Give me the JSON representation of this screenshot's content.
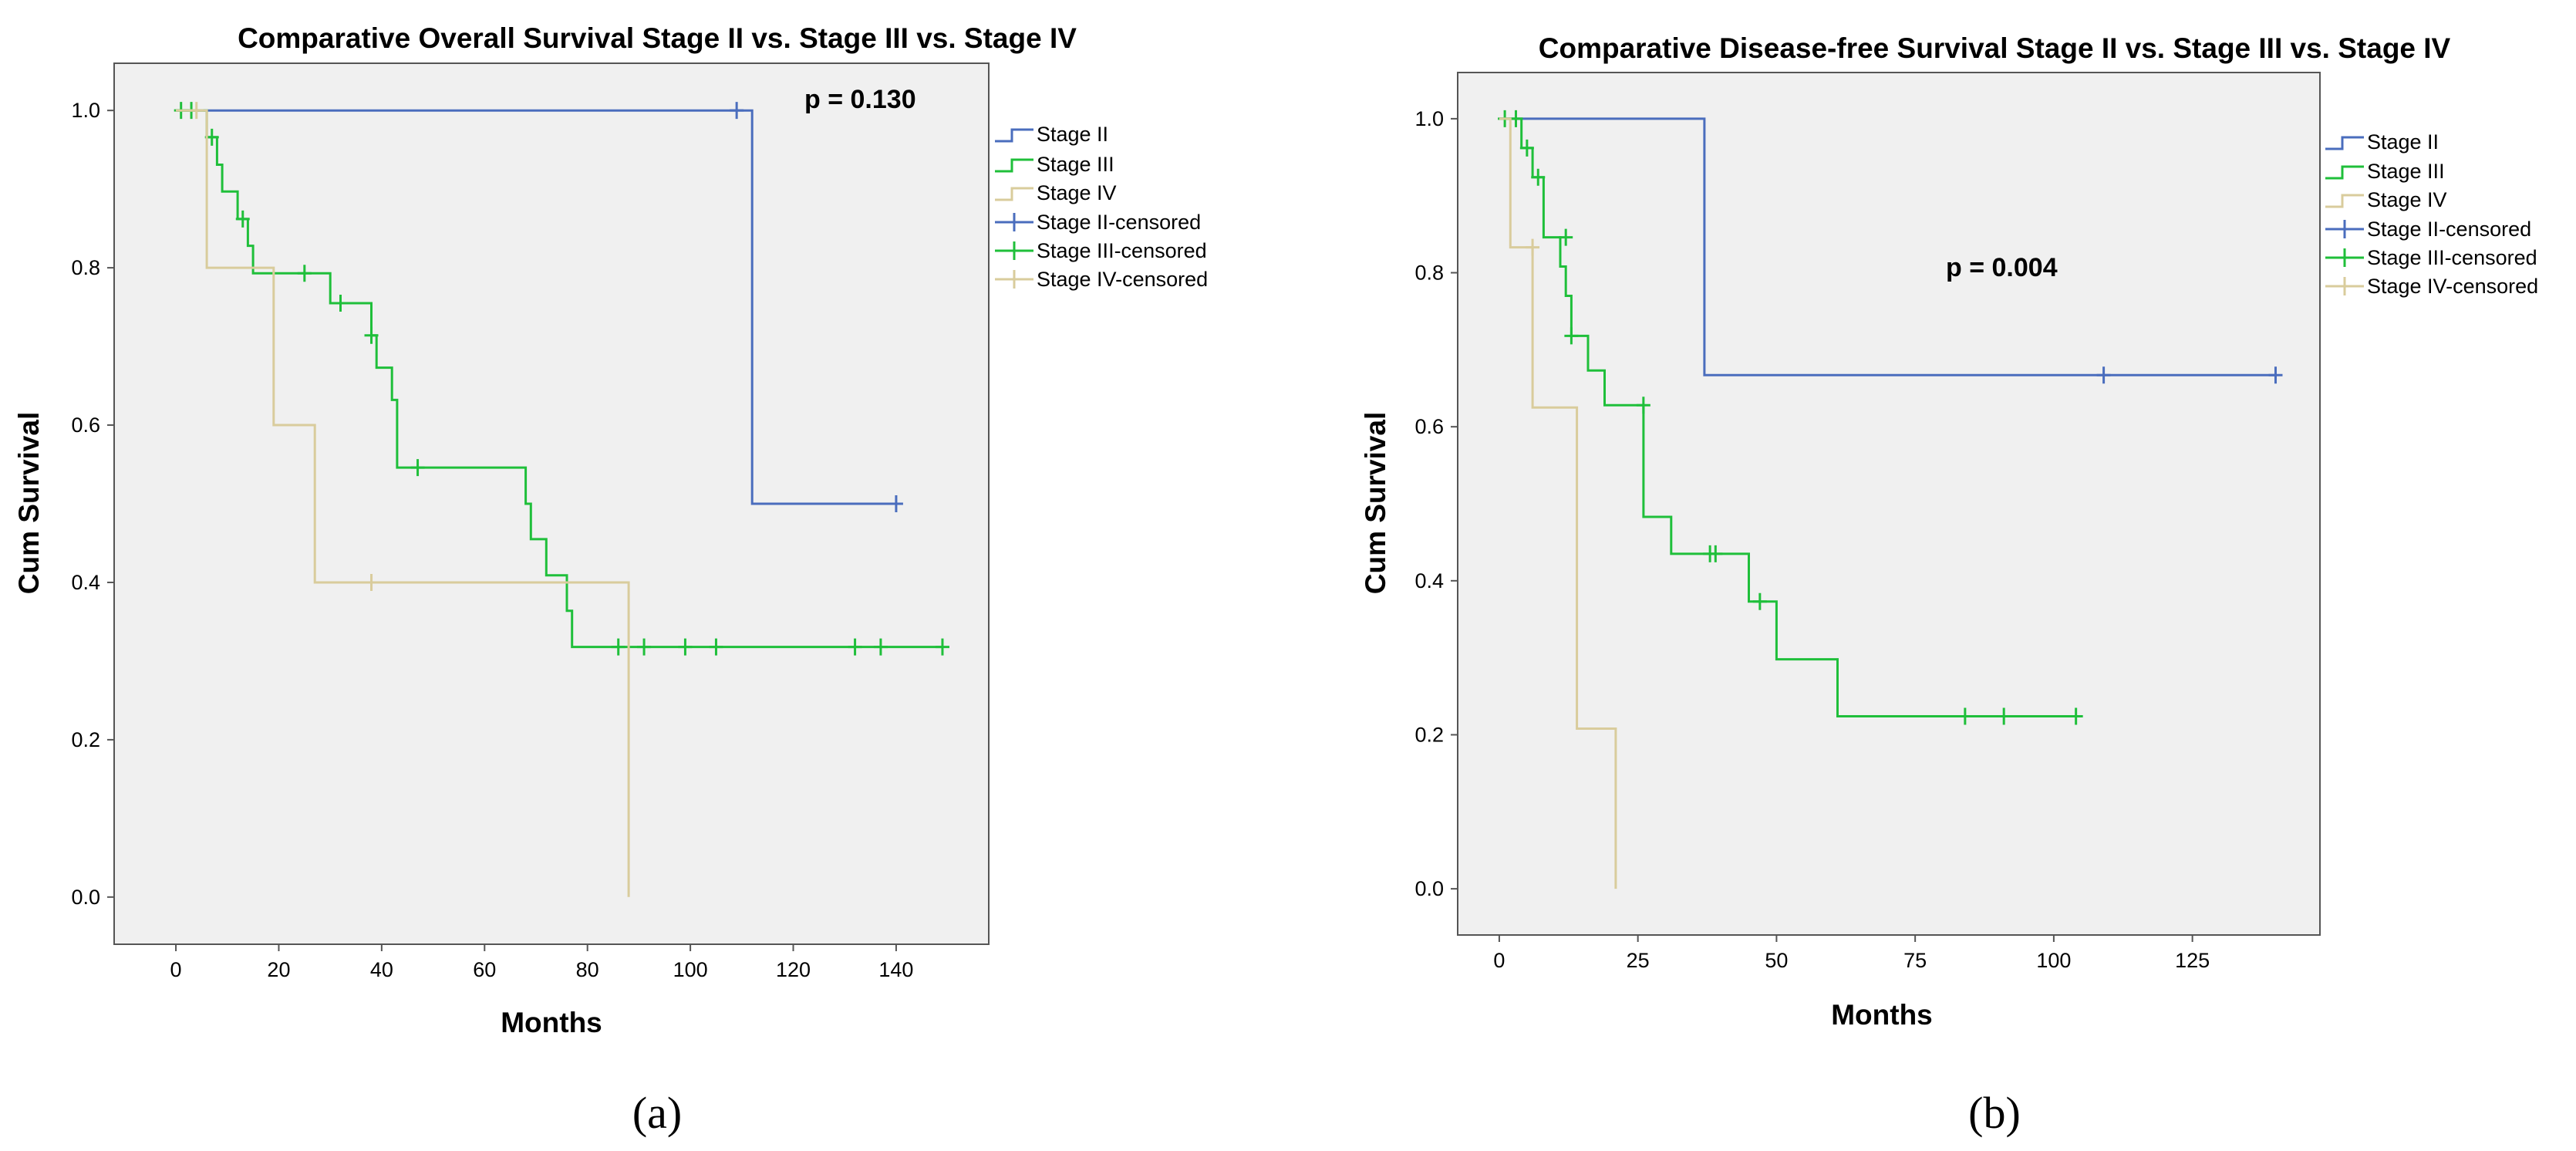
{
  "colors": {
    "stage_ii": "#4a6dbd",
    "stage_iii": "#1fbf3a",
    "stage_iv": "#d9cc9c",
    "plot_bg": "#f0f0f0",
    "frame": "#555555"
  },
  "chart_data": [
    {
      "type": "line",
      "subtype": "kaplan-meier step",
      "panel_label": "(a)",
      "title": "Comparative Overall Survival Stage II vs. Stage III vs. Stage IV",
      "xlabel": "Months",
      "ylabel": "Cum Survival",
      "xlim": [
        -12,
        158
      ],
      "ylim": [
        -0.06,
        1.06
      ],
      "xticks": [
        0,
        20,
        40,
        60,
        80,
        100,
        120,
        140
      ],
      "yticks": [
        0.0,
        0.2,
        0.4,
        0.6,
        0.8,
        1.0
      ],
      "ytick_labels": [
        "0.0",
        "0.2",
        "0.4",
        "0.6",
        "0.8",
        "1.0"
      ],
      "grid": false,
      "legend_position": "outside-right",
      "legend": [
        "Stage II",
        "Stage III",
        "Stage IV",
        "Stage II-censored",
        "Stage III-censored",
        "Stage IV-censored"
      ],
      "annotation": {
        "text": "p = 0.130",
        "x": 112,
        "y": 1.01
      },
      "series": [
        {
          "name": "Stage II",
          "color_key": "stage_ii",
          "steps": [
            [
              0,
              1.0
            ],
            [
              112,
              1.0
            ],
            [
              112,
              0.5
            ],
            [
              140,
              0.5
            ]
          ],
          "censored": [
            [
              109,
              1.0
            ],
            [
              140,
              0.5
            ]
          ]
        },
        {
          "name": "Stage III",
          "color_key": "stage_iii",
          "steps": [
            [
              0,
              1.0
            ],
            [
              6,
              1.0
            ],
            [
              6,
              0.966
            ],
            [
              8,
              0.966
            ],
            [
              8,
              0.931
            ],
            [
              9,
              0.931
            ],
            [
              9,
              0.897
            ],
            [
              12,
              0.897
            ],
            [
              12,
              0.862
            ],
            [
              14,
              0.862
            ],
            [
              14,
              0.828
            ],
            [
              15,
              0.828
            ],
            [
              15,
              0.793
            ],
            [
              30,
              0.793
            ],
            [
              30,
              0.755
            ],
            [
              38,
              0.755
            ],
            [
              38,
              0.714
            ],
            [
              39,
              0.714
            ],
            [
              39,
              0.673
            ],
            [
              42,
              0.673
            ],
            [
              42,
              0.632
            ],
            [
              43,
              0.632
            ],
            [
              43,
              0.546
            ],
            [
              68,
              0.546
            ],
            [
              68,
              0.5
            ],
            [
              69,
              0.5
            ],
            [
              69,
              0.455
            ],
            [
              72,
              0.455
            ],
            [
              72,
              0.409
            ],
            [
              76,
              0.409
            ],
            [
              76,
              0.364
            ],
            [
              77,
              0.364
            ],
            [
              77,
              0.318
            ],
            [
              149,
              0.318
            ]
          ],
          "censored": [
            [
              1,
              1.0
            ],
            [
              3,
              1.0
            ],
            [
              7,
              0.966
            ],
            [
              13,
              0.862
            ],
            [
              25,
              0.793
            ],
            [
              32,
              0.755
            ],
            [
              38,
              0.714
            ],
            [
              47,
              0.546
            ],
            [
              86,
              0.318
            ],
            [
              91,
              0.318
            ],
            [
              99,
              0.318
            ],
            [
              105,
              0.318
            ],
            [
              132,
              0.318
            ],
            [
              137,
              0.318
            ],
            [
              149,
              0.318
            ]
          ]
        },
        {
          "name": "Stage IV",
          "color_key": "stage_iv",
          "steps": [
            [
              0,
              1.0
            ],
            [
              6,
              1.0
            ],
            [
              6,
              0.8
            ],
            [
              19,
              0.8
            ],
            [
              19,
              0.6
            ],
            [
              27,
              0.6
            ],
            [
              27,
              0.4
            ],
            [
              88,
              0.4
            ],
            [
              88,
              0.0
            ]
          ],
          "censored": [
            [
              4,
              1.0
            ],
            [
              38,
              0.4
            ]
          ]
        }
      ]
    },
    {
      "type": "line",
      "subtype": "kaplan-meier step",
      "panel_label": "(b)",
      "title": "Comparative Disease-free Survival Stage II vs. Stage III vs. Stage IV",
      "xlabel": "Months",
      "ylabel": "Cum Survival",
      "xlim": [
        -7.5,
        148
      ],
      "ylim": [
        -0.06,
        1.06
      ],
      "xticks": [
        0,
        25,
        50,
        75,
        100,
        125
      ],
      "yticks": [
        0.0,
        0.2,
        0.4,
        0.6,
        0.8,
        1.0
      ],
      "ytick_labels": [
        "0.0",
        "0.2",
        "0.4",
        "0.6",
        "0.8",
        "1.0"
      ],
      "grid": false,
      "legend_position": "outside-right",
      "legend": [
        "Stage II",
        "Stage III",
        "Stage IV",
        "Stage II-censored",
        "Stage III-censored",
        "Stage IV-censored"
      ],
      "annotation": {
        "text": "p = 0.004",
        "x": 92,
        "y": 0.79
      },
      "series": [
        {
          "name": "Stage II",
          "color_key": "stage_ii",
          "steps": [
            [
              0,
              1.0
            ],
            [
              37,
              1.0
            ],
            [
              37,
              0.667
            ],
            [
              140,
              0.667
            ]
          ],
          "censored": [
            [
              109,
              0.667
            ],
            [
              140,
              0.667
            ]
          ]
        },
        {
          "name": "Stage III",
          "color_key": "stage_iii",
          "steps": [
            [
              0,
              1.0
            ],
            [
              4,
              1.0
            ],
            [
              4,
              0.962
            ],
            [
              6,
              0.962
            ],
            [
              6,
              0.924
            ],
            [
              8,
              0.924
            ],
            [
              8,
              0.846
            ],
            [
              11,
              0.846
            ],
            [
              11,
              0.808
            ],
            [
              12,
              0.808
            ],
            [
              12,
              0.77
            ],
            [
              13,
              0.77
            ],
            [
              13,
              0.718
            ],
            [
              16,
              0.718
            ],
            [
              16,
              0.673
            ],
            [
              19,
              0.673
            ],
            [
              19,
              0.628
            ],
            [
              26,
              0.628
            ],
            [
              26,
              0.483
            ],
            [
              31,
              0.483
            ],
            [
              31,
              0.435
            ],
            [
              45,
              0.435
            ],
            [
              45,
              0.373
            ],
            [
              50,
              0.373
            ],
            [
              50,
              0.298
            ],
            [
              61,
              0.298
            ],
            [
              61,
              0.224
            ],
            [
              105,
              0.224
            ]
          ],
          "censored": [
            [
              1,
              1.0
            ],
            [
              3,
              1.0
            ],
            [
              5,
              0.962
            ],
            [
              7,
              0.924
            ],
            [
              12,
              0.846
            ],
            [
              13,
              0.718
            ],
            [
              26,
              0.628
            ],
            [
              38,
              0.435
            ],
            [
              39,
              0.435
            ],
            [
              47,
              0.373
            ],
            [
              84,
              0.224
            ],
            [
              91,
              0.224
            ],
            [
              104,
              0.224
            ]
          ]
        },
        {
          "name": "Stage IV",
          "color_key": "stage_iv",
          "steps": [
            [
              0,
              1.0
            ],
            [
              2,
              1.0
            ],
            [
              2,
              0.833
            ],
            [
              6,
              0.833
            ],
            [
              6,
              0.625
            ],
            [
              14,
              0.625
            ],
            [
              14,
              0.208
            ],
            [
              21,
              0.208
            ],
            [
              21,
              0.0
            ]
          ],
          "censored": [
            [
              6,
              0.833
            ]
          ]
        }
      ]
    }
  ]
}
